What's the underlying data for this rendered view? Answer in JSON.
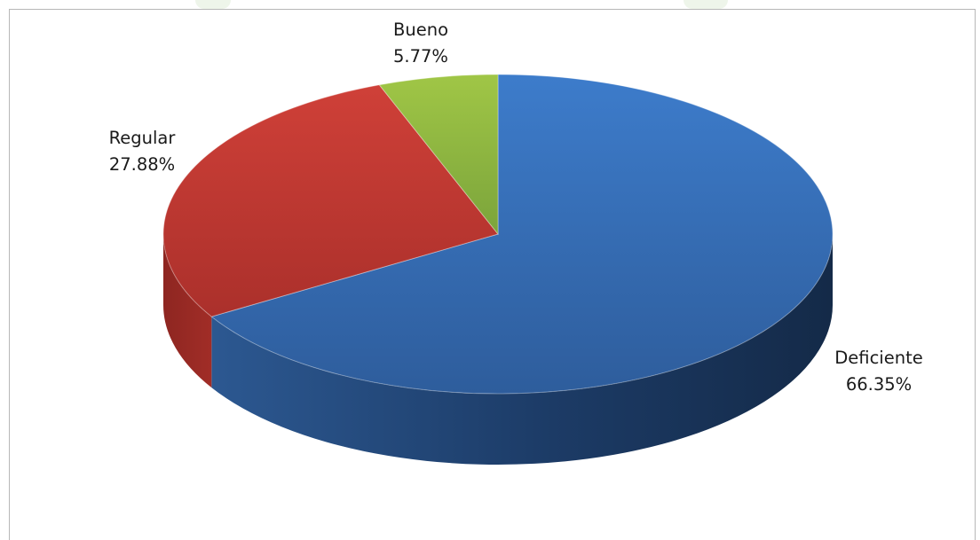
{
  "chart_data": {
    "type": "pie",
    "slices": [
      {
        "name": "Deficiente",
        "value": 66.35,
        "label": "66.35%",
        "color": "#3a72bb"
      },
      {
        "name": "Regular",
        "value": 27.88,
        "label": "27.88%",
        "color": "#c23b33"
      },
      {
        "name": "Bueno",
        "value": 5.77,
        "label": "5.77%",
        "color": "#8db541"
      }
    ],
    "legend": "none",
    "style": "3d"
  }
}
